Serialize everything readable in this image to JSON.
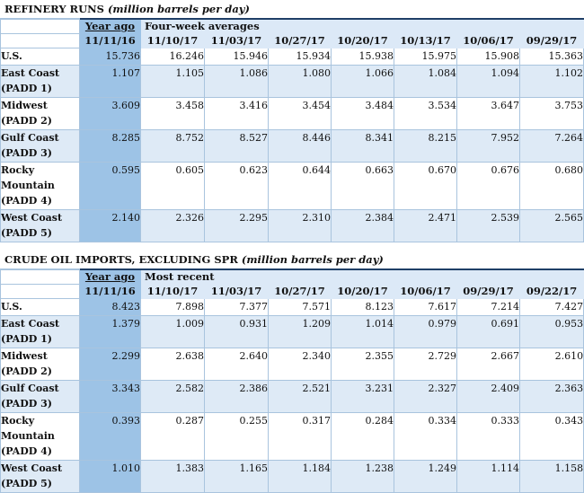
{
  "refinery": {
    "title": "REFINERY RUNS",
    "title_italic": "(million barrels per day)",
    "year_ago_label": "Year ago",
    "group_label": "Four-week averages",
    "dates": [
      "11/11/16",
      "11/10/17",
      "11/03/17",
      "10/27/17",
      "10/20/17",
      "10/13/17",
      "10/06/17",
      "09/29/17"
    ],
    "rows": [
      {
        "label": [
          "U.S."
        ],
        "values": [
          "15.736",
          "16.246",
          "15.946",
          "15.934",
          "15.938",
          "15.975",
          "15.908",
          "15.363"
        ]
      },
      {
        "label": [
          "East Coast",
          "(PADD 1)"
        ],
        "values": [
          "1.107",
          "1.105",
          "1.086",
          "1.080",
          "1.066",
          "1.084",
          "1.094",
          "1.102"
        ]
      },
      {
        "label": [
          "Midwest",
          "(PADD 2)"
        ],
        "values": [
          "3.609",
          "3.458",
          "3.416",
          "3.454",
          "3.484",
          "3.534",
          "3.647",
          "3.753"
        ]
      },
      {
        "label": [
          "Gulf Coast",
          "(PADD 3)"
        ],
        "values": [
          "8.285",
          "8.752",
          "8.527",
          "8.446",
          "8.341",
          "8.215",
          "7.952",
          "7.264"
        ]
      },
      {
        "label": [
          "Rocky",
          "Mountain",
          "(PADD 4)"
        ],
        "values": [
          "0.595",
          "0.605",
          "0.623",
          "0.644",
          "0.663",
          "0.670",
          "0.676",
          "0.680"
        ]
      },
      {
        "label": [
          "West Coast",
          "(PADD 5)"
        ],
        "values": [
          "2.140",
          "2.326",
          "2.295",
          "2.310",
          "2.384",
          "2.471",
          "2.539",
          "2.565"
        ]
      }
    ]
  },
  "imports": {
    "title": "CRUDE OIL IMPORTS, EXCLUDING SPR",
    "title_italic": "(million barrels per day)",
    "year_ago_label": "Year ago",
    "group_label": "Most recent",
    "dates": [
      "11/11/16",
      "11/10/17",
      "11/03/17",
      "10/27/17",
      "10/20/17",
      "10/06/17",
      "09/29/17",
      "09/22/17"
    ],
    "rows": [
      {
        "label": [
          "U.S."
        ],
        "values": [
          "8.423",
          "7.898",
          "7.377",
          "7.571",
          "8.123",
          "7.617",
          "7.214",
          "7.427"
        ]
      },
      {
        "label": [
          "East Coast",
          "(PADD 1)"
        ],
        "values": [
          "1.379",
          "1.009",
          "0.931",
          "1.209",
          "1.014",
          "0.979",
          "0.691",
          "0.953"
        ]
      },
      {
        "label": [
          "Midwest",
          "(PADD 2)"
        ],
        "values": [
          "2.299",
          "2.638",
          "2.640",
          "2.340",
          "2.355",
          "2.729",
          "2.667",
          "2.610"
        ]
      },
      {
        "label": [
          "Gulf Coast",
          "(PADD 3)"
        ],
        "values": [
          "3.343",
          "2.582",
          "2.386",
          "2.521",
          "3.231",
          "2.327",
          "2.409",
          "2.363"
        ]
      },
      {
        "label": [
          "Rocky",
          "Mountain",
          "(PADD 4)"
        ],
        "values": [
          "0.393",
          "0.287",
          "0.255",
          "0.317",
          "0.284",
          "0.334",
          "0.333",
          "0.343"
        ]
      },
      {
        "label": [
          "West Coast",
          "(PADD 5)"
        ],
        "values": [
          "1.010",
          "1.383",
          "1.165",
          "1.184",
          "1.238",
          "1.249",
          "1.114",
          "1.158"
        ]
      }
    ]
  }
}
